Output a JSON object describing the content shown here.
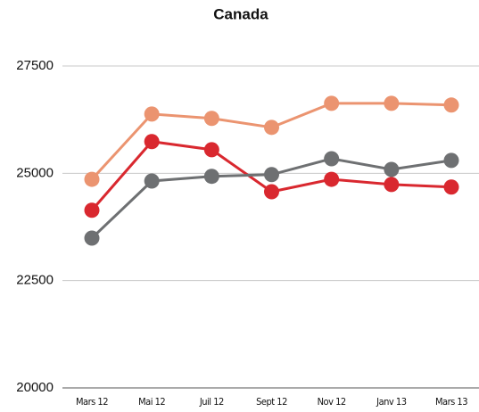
{
  "chart_data": {
    "type": "line",
    "title": "Canada",
    "categories": [
      "Mars 12",
      "Mai 12",
      "Juil 12",
      "Sept 12",
      "Nov 12",
      "Janv 13",
      "Mars 13"
    ],
    "series": [
      {
        "color": "#eb9470",
        "values": [
          24860,
          26380,
          26280,
          26070,
          26630,
          26630,
          26590
        ]
      },
      {
        "color": "#d9282f",
        "values": [
          24140,
          25740,
          25550,
          24570,
          24860,
          24740,
          24680
        ]
      },
      {
        "color": "#6e7072",
        "values": [
          23490,
          24820,
          24930,
          24970,
          25340,
          25090,
          25300
        ]
      }
    ],
    "ylim": [
      20000,
      27500
    ],
    "yticks": [
      20000,
      22500,
      25000,
      27500
    ],
    "grid": true
  }
}
